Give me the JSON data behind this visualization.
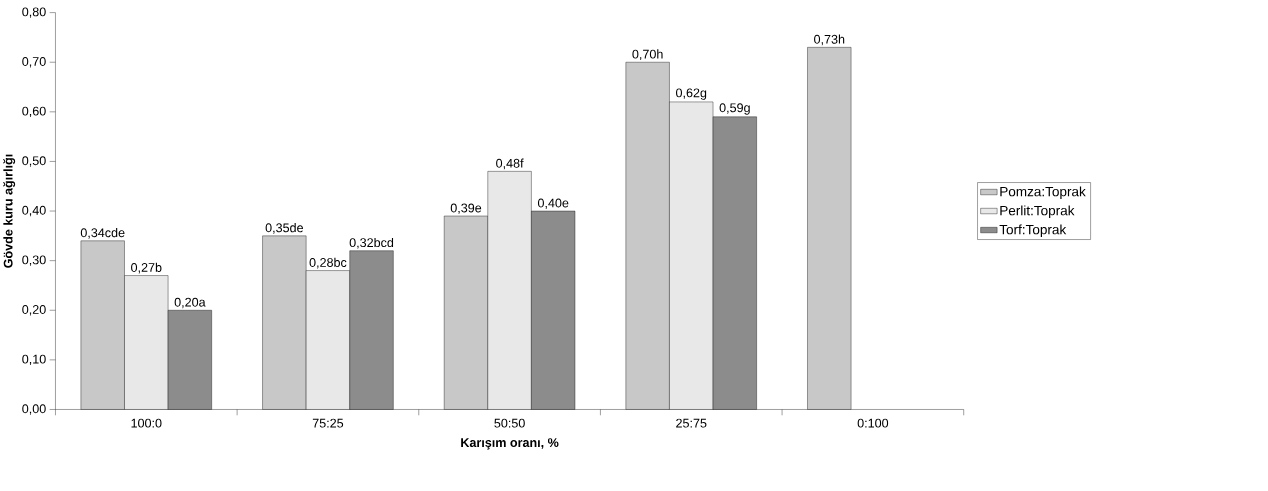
{
  "chart_data": {
    "type": "bar",
    "xlabel": "Karışım oranı, %",
    "ylabel": "Gövde kuru ağırlığı",
    "categories": [
      "100:0",
      "75:25",
      "50:50",
      "25:75",
      "0:100"
    ],
    "series": [
      {
        "name": "Pomza:Toprak",
        "color": "#c8c8c8",
        "values": [
          0.34,
          0.35,
          0.39,
          0.7,
          0.73
        ],
        "value_labels": [
          "0,34cde",
          "0,35de",
          "0,39e",
          "0,70h",
          "0,73h"
        ]
      },
      {
        "name": "Perlit:Toprak",
        "color": "#e8e8e8",
        "values": [
          0.27,
          0.28,
          0.48,
          0.62,
          null
        ],
        "value_labels": [
          "0,27b",
          "0,28bc",
          "0,48f",
          "0,62g",
          null
        ]
      },
      {
        "name": "Torf:Toprak",
        "color": "#8c8c8c",
        "values": [
          0.2,
          0.32,
          0.4,
          0.59,
          null
        ],
        "value_labels": [
          "0,20a",
          "0,32bcd",
          "0,40e",
          "0,59g",
          null
        ]
      }
    ],
    "ylim": [
      0,
      0.8
    ],
    "yticks": [
      {
        "value": 0,
        "label": "0,00"
      },
      {
        "value": 0.1,
        "label": "0,10"
      },
      {
        "value": 0.2,
        "label": "0,20"
      },
      {
        "value": 0.3,
        "label": "0,30"
      },
      {
        "value": 0.4,
        "label": "0,40"
      },
      {
        "value": 0.5,
        "label": "0,50"
      },
      {
        "value": 0.6,
        "label": "0,60"
      },
      {
        "value": 0.7,
        "label": "0,70"
      },
      {
        "value": 0.8,
        "label": "0,80"
      }
    ],
    "grid": false,
    "legend": "right"
  }
}
